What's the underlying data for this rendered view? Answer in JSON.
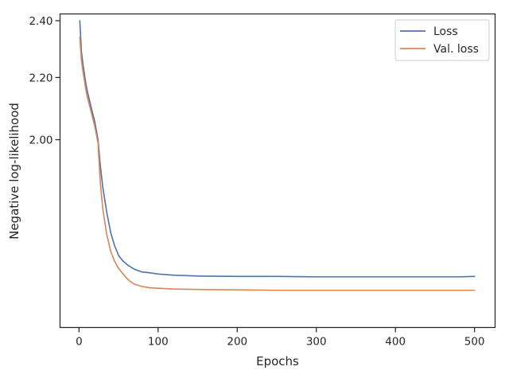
{
  "chart_data": {
    "type": "line",
    "xlabel": "Epochs",
    "ylabel": "Negative log-likelihood",
    "xlim": [
      -24,
      526
    ],
    "ylim": [
      1.5,
      2.425
    ],
    "y_scale": "log",
    "xticks": [
      0,
      100,
      200,
      300,
      400,
      500
    ],
    "xtick_labels": [
      "0",
      "100",
      "200",
      "300",
      "400",
      "500"
    ],
    "yticks": [
      2.0,
      2.2,
      2.4
    ],
    "ytick_labels": [
      "2.00",
      "2.20",
      "2.40"
    ],
    "grid": false,
    "legend_position": "top-right",
    "series": [
      {
        "name": "Loss",
        "color": "#4c72b0",
        "x": [
          1,
          3,
          5,
          8,
          10,
          15,
          20,
          24,
          27,
          30,
          35,
          40,
          45,
          50,
          55,
          60,
          65,
          70,
          80,
          90,
          100,
          120,
          150,
          200,
          250,
          300,
          350,
          400,
          450,
          480,
          500
        ],
        "y": [
          2.4,
          2.29,
          2.245,
          2.19,
          2.16,
          2.105,
          2.055,
          2.0,
          1.92,
          1.86,
          1.79,
          1.735,
          1.7,
          1.675,
          1.662,
          1.653,
          1.646,
          1.64,
          1.633,
          1.631,
          1.628,
          1.625,
          1.623,
          1.622,
          1.622,
          1.621,
          1.621,
          1.621,
          1.621,
          1.621,
          1.622
        ]
      },
      {
        "name": "Val. loss",
        "color": "#dd8452",
        "x": [
          1,
          3,
          5,
          8,
          10,
          15,
          20,
          24,
          27,
          30,
          35,
          40,
          45,
          50,
          55,
          60,
          65,
          70,
          80,
          90,
          100,
          120,
          150,
          200,
          250,
          300,
          350,
          400,
          450,
          480,
          500
        ],
        "y": [
          2.34,
          2.26,
          2.22,
          2.17,
          2.14,
          2.09,
          2.04,
          1.99,
          1.87,
          1.8,
          1.73,
          1.686,
          1.66,
          1.642,
          1.63,
          1.618,
          1.609,
          1.603,
          1.597,
          1.594,
          1.593,
          1.591,
          1.59,
          1.589,
          1.588,
          1.588,
          1.588,
          1.588,
          1.588,
          1.588,
          1.588
        ]
      }
    ]
  }
}
